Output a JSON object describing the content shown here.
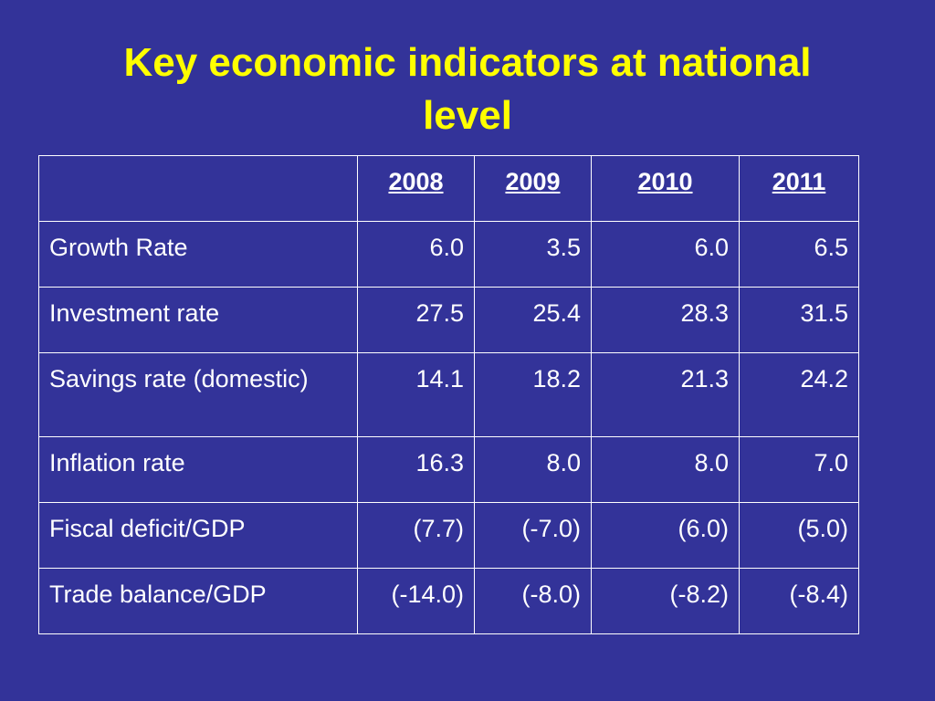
{
  "slide": {
    "title_line1": "Key economic indicators at national",
    "title_line2": "level",
    "title_color": "#ffff00",
    "background_color": "#333399"
  },
  "table": {
    "corner": "",
    "years": [
      "2008",
      "2009",
      "2010",
      "2011"
    ],
    "rows": [
      {
        "label": "Growth Rate",
        "values": [
          "6.0",
          "3.5",
          "6.0",
          "6.5"
        ]
      },
      {
        "label": "Investment rate",
        "values": [
          "27.5",
          "25.4",
          "28.3",
          "31.5"
        ]
      },
      {
        "label": "Savings rate (domestic)",
        "values": [
          "14.1",
          "18.2",
          "21.3",
          "24.2"
        ]
      },
      {
        "label": "Inflation rate",
        "values": [
          "16.3",
          "8.0",
          "8.0",
          "7.0"
        ]
      },
      {
        "label": "Fiscal deficit/GDP",
        "values": [
          "(7.7)",
          "(-7.0)",
          "(6.0)",
          "(5.0)"
        ]
      },
      {
        "label": "Trade balance/GDP",
        "values": [
          "(-14.0)",
          "(-8.0)",
          "(-8.2)",
          "(-8.4)"
        ]
      }
    ]
  }
}
